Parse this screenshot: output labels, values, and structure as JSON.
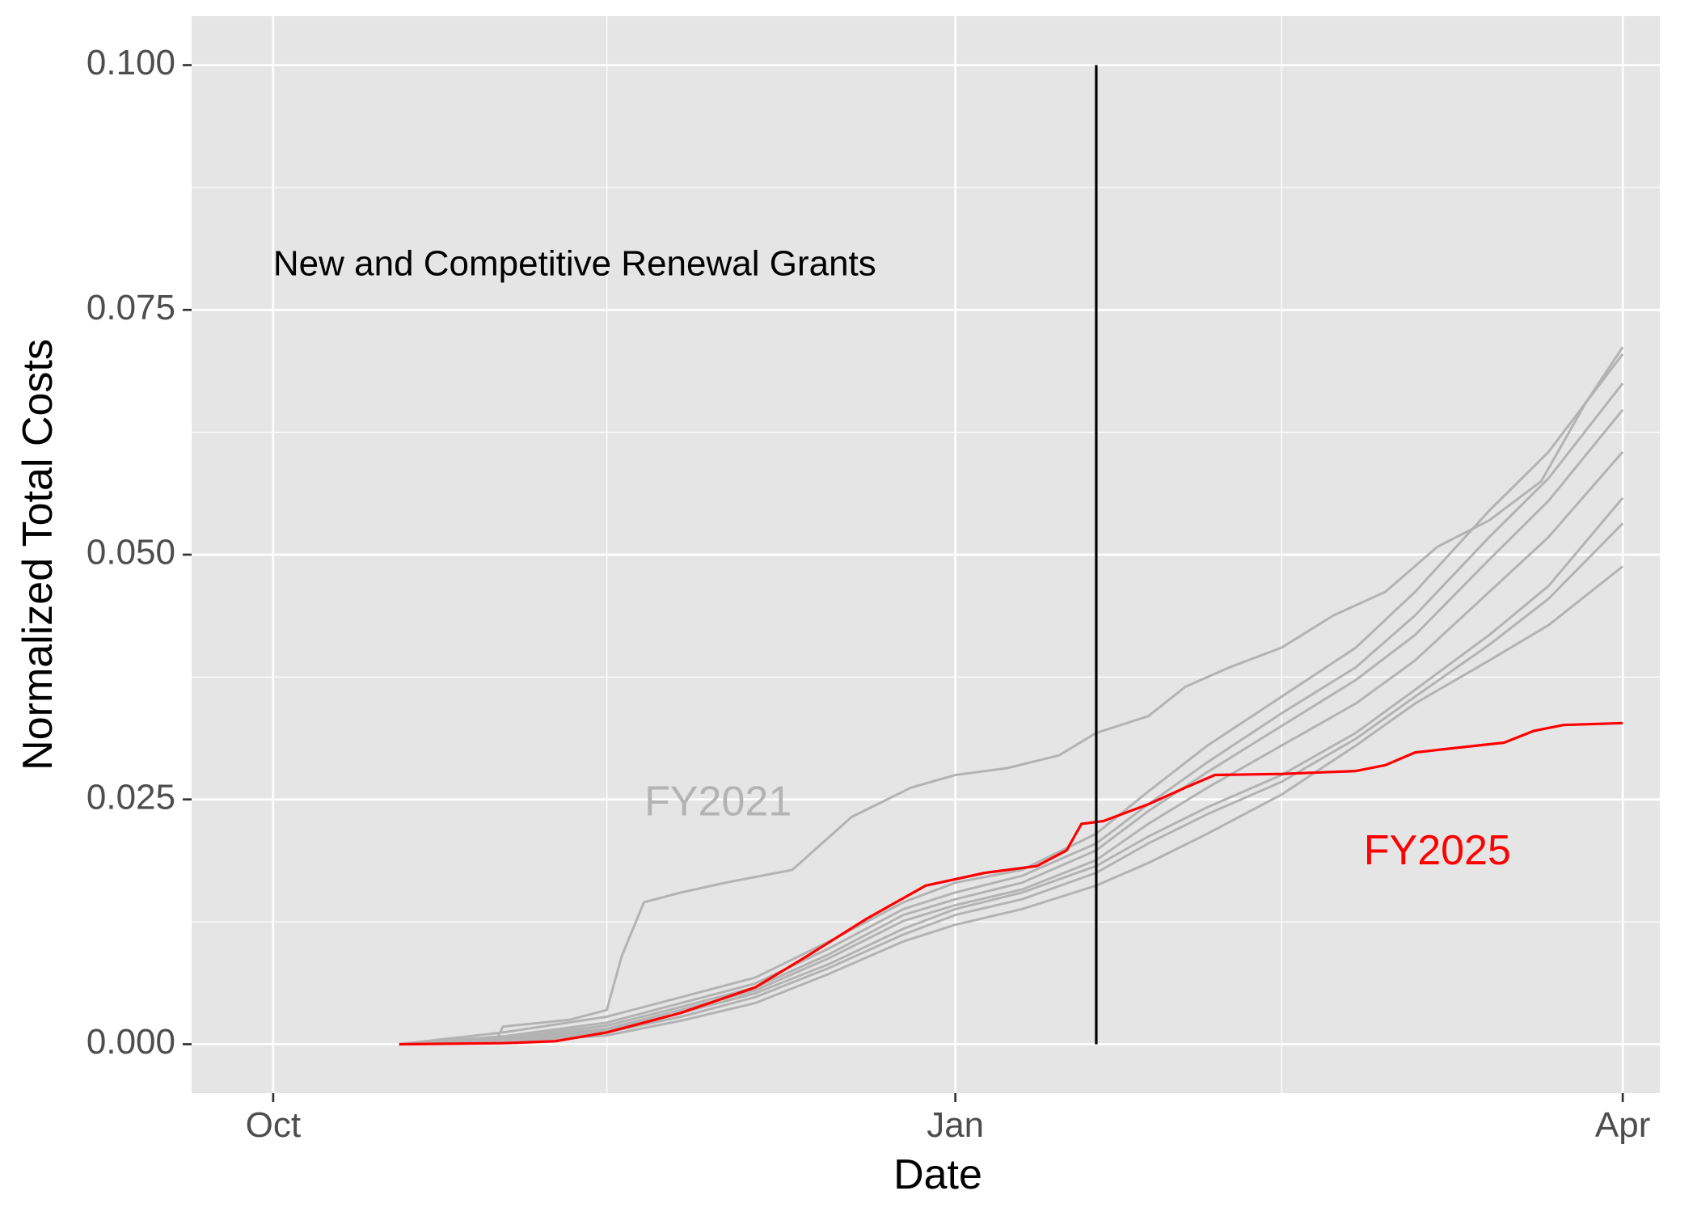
{
  "chart_data": {
    "type": "line",
    "title": "",
    "xlabel": "Date",
    "ylabel": "Normalized Total Costs",
    "xlim": [
      "2020-09-20",
      "2021-04-06"
    ],
    "ylim": [
      -0.005,
      0.105
    ],
    "grid": true,
    "legend": "none",
    "x_ticks": [
      {
        "date": "2020-10-01",
        "label": "Oct"
      },
      {
        "date": "2021-01-01",
        "label": "Jan"
      },
      {
        "date": "2021-04-01",
        "label": "Apr"
      }
    ],
    "x_minor_ticks": [
      "2020-11-15",
      "2021-02-14"
    ],
    "y_ticks": [
      {
        "value": 0.0,
        "label": "0.000"
      },
      {
        "value": 0.025,
        "label": "0.025"
      },
      {
        "value": 0.05,
        "label": "0.050"
      },
      {
        "value": 0.075,
        "label": "0.075"
      },
      {
        "value": 0.1,
        "label": "0.100"
      }
    ],
    "y_minor_ticks": [
      0.0125,
      0.0375,
      0.0625,
      0.0875
    ],
    "vline": {
      "date": "2021-01-20",
      "y_range": [
        0.0,
        0.1
      ]
    },
    "colors": {
      "panel": "#e5e5e5",
      "grid": "#ffffff",
      "history": "#b3b3b3",
      "highlight": "#ff0000",
      "vline": "#000000"
    },
    "annotations": [
      {
        "text": "New and Competitive Renewal Grants",
        "date": "2020-10-01",
        "y": 0.0795,
        "color": "#000000",
        "size": 44,
        "anchor": "start"
      },
      {
        "text": "FY2021",
        "date": "2020-11-30",
        "y": 0.0245,
        "color": "#b3b3b3",
        "size": 52,
        "anchor": "middle"
      },
      {
        "text": "FY2025",
        "date": "2021-03-07",
        "y": 0.0195,
        "color": "#ff0000",
        "size": 52,
        "anchor": "middle"
      }
    ],
    "series": [
      {
        "points": [
          [
            "2020-10-18",
            0
          ],
          [
            "2020-10-31",
            0.0003
          ],
          [
            "2020-11-01",
            0.0018
          ],
          [
            "2020-11-10",
            0.0025
          ],
          [
            "2020-11-15",
            0.0035
          ],
          [
            "2020-11-17",
            0.009
          ],
          [
            "2020-11-20",
            0.0145
          ],
          [
            "2020-11-25",
            0.0155
          ],
          [
            "2020-12-01",
            0.0165
          ],
          [
            "2020-12-10",
            0.0178
          ],
          [
            "2020-12-18",
            0.0232
          ],
          [
            "2020-12-26",
            0.0262
          ],
          [
            "2021-01-01",
            0.0275
          ],
          [
            "2021-01-08",
            0.0282
          ],
          [
            "2021-01-15",
            0.0295
          ],
          [
            "2021-01-20",
            0.0318
          ],
          [
            "2021-01-27",
            0.0335
          ],
          [
            "2021-02-01",
            0.0365
          ],
          [
            "2021-02-07",
            0.0385
          ],
          [
            "2021-02-14",
            0.0405
          ],
          [
            "2021-02-21",
            0.0438
          ],
          [
            "2021-02-28",
            0.0462
          ],
          [
            "2021-03-07",
            0.0508
          ],
          [
            "2021-03-14",
            0.0535
          ],
          [
            "2021-03-21",
            0.0575
          ],
          [
            "2021-03-27",
            0.0655
          ],
          [
            "2021-04-01",
            0.0712
          ]
        ]
      },
      {
        "points": [
          [
            "2020-10-18",
            0
          ],
          [
            "2020-11-01",
            0.0012
          ],
          [
            "2020-11-15",
            0.0028
          ],
          [
            "2020-11-25",
            0.0048
          ],
          [
            "2020-12-05",
            0.0068
          ],
          [
            "2020-12-15",
            0.0105
          ],
          [
            "2020-12-25",
            0.0145
          ],
          [
            "2021-01-01",
            0.0165
          ],
          [
            "2021-01-10",
            0.0178
          ],
          [
            "2021-01-20",
            0.0215
          ],
          [
            "2021-01-27",
            0.0258
          ],
          [
            "2021-02-04",
            0.0305
          ],
          [
            "2021-02-14",
            0.0355
          ],
          [
            "2021-02-24",
            0.0405
          ],
          [
            "2021-03-04",
            0.0462
          ],
          [
            "2021-03-14",
            0.0545
          ],
          [
            "2021-03-22",
            0.0605
          ],
          [
            "2021-04-01",
            0.0705
          ]
        ]
      },
      {
        "points": [
          [
            "2020-10-18",
            0
          ],
          [
            "2020-11-01",
            0.0008
          ],
          [
            "2020-11-15",
            0.0022
          ],
          [
            "2020-11-25",
            0.0042
          ],
          [
            "2020-12-05",
            0.0062
          ],
          [
            "2020-12-15",
            0.0098
          ],
          [
            "2020-12-25",
            0.0138
          ],
          [
            "2021-01-01",
            0.0155
          ],
          [
            "2021-01-10",
            0.0172
          ],
          [
            "2021-01-20",
            0.0205
          ],
          [
            "2021-01-27",
            0.0245
          ],
          [
            "2021-02-04",
            0.0288
          ],
          [
            "2021-02-14",
            0.0338
          ],
          [
            "2021-02-24",
            0.0385
          ],
          [
            "2021-03-04",
            0.0438
          ],
          [
            "2021-03-14",
            0.0518
          ],
          [
            "2021-03-22",
            0.0578
          ],
          [
            "2021-04-01",
            0.0675
          ]
        ]
      },
      {
        "points": [
          [
            "2020-10-18",
            0
          ],
          [
            "2020-11-01",
            0.0006
          ],
          [
            "2020-11-15",
            0.0019
          ],
          [
            "2020-11-25",
            0.0038
          ],
          [
            "2020-12-05",
            0.0058
          ],
          [
            "2020-12-15",
            0.0092
          ],
          [
            "2020-12-25",
            0.0132
          ],
          [
            "2021-01-01",
            0.0148
          ],
          [
            "2021-01-10",
            0.0165
          ],
          [
            "2021-01-20",
            0.0198
          ],
          [
            "2021-01-27",
            0.0238
          ],
          [
            "2021-02-04",
            0.0278
          ],
          [
            "2021-02-14",
            0.0325
          ],
          [
            "2021-02-24",
            0.0372
          ],
          [
            "2021-03-04",
            0.0418
          ],
          [
            "2021-03-14",
            0.0495
          ],
          [
            "2021-03-22",
            0.0555
          ],
          [
            "2021-04-01",
            0.0648
          ]
        ]
      },
      {
        "points": [
          [
            "2020-10-18",
            0
          ],
          [
            "2020-11-01",
            0.0005
          ],
          [
            "2020-11-15",
            0.0016
          ],
          [
            "2020-11-25",
            0.0035
          ],
          [
            "2020-12-05",
            0.0055
          ],
          [
            "2020-12-15",
            0.0088
          ],
          [
            "2020-12-25",
            0.0126
          ],
          [
            "2021-01-01",
            0.0142
          ],
          [
            "2021-01-10",
            0.0158
          ],
          [
            "2021-01-20",
            0.0188
          ],
          [
            "2021-01-27",
            0.0225
          ],
          [
            "2021-02-04",
            0.0262
          ],
          [
            "2021-02-14",
            0.0305
          ],
          [
            "2021-02-24",
            0.0348
          ],
          [
            "2021-03-04",
            0.0392
          ],
          [
            "2021-03-14",
            0.0462
          ],
          [
            "2021-03-22",
            0.0518
          ],
          [
            "2021-04-01",
            0.0605
          ]
        ]
      },
      {
        "points": [
          [
            "2020-10-18",
            0
          ],
          [
            "2020-11-01",
            0.0004
          ],
          [
            "2020-11-15",
            0.0014
          ],
          [
            "2020-11-25",
            0.0032
          ],
          [
            "2020-12-05",
            0.0052
          ],
          [
            "2020-12-15",
            0.0082
          ],
          [
            "2020-12-25",
            0.0118
          ],
          [
            "2021-01-01",
            0.0138
          ],
          [
            "2021-01-10",
            0.0155
          ],
          [
            "2021-01-20",
            0.0182
          ],
          [
            "2021-01-27",
            0.0212
          ],
          [
            "2021-02-04",
            0.0242
          ],
          [
            "2021-02-14",
            0.0275
          ],
          [
            "2021-02-24",
            0.0318
          ],
          [
            "2021-03-04",
            0.0362
          ],
          [
            "2021-03-14",
            0.0418
          ],
          [
            "2021-03-22",
            0.0468
          ],
          [
            "2021-04-01",
            0.0558
          ]
        ]
      },
      {
        "points": [
          [
            "2020-10-18",
            0
          ],
          [
            "2020-11-01",
            0.0003
          ],
          [
            "2020-11-15",
            0.0012
          ],
          [
            "2020-11-25",
            0.0028
          ],
          [
            "2020-12-05",
            0.0048
          ],
          [
            "2020-12-15",
            0.0078
          ],
          [
            "2020-12-25",
            0.0112
          ],
          [
            "2021-01-01",
            0.0132
          ],
          [
            "2021-01-10",
            0.0148
          ],
          [
            "2021-01-20",
            0.0175
          ],
          [
            "2021-01-27",
            0.0205
          ],
          [
            "2021-02-04",
            0.0235
          ],
          [
            "2021-02-14",
            0.0268
          ],
          [
            "2021-02-24",
            0.0312
          ],
          [
            "2021-03-04",
            0.0355
          ],
          [
            "2021-03-14",
            0.0408
          ],
          [
            "2021-03-22",
            0.0455
          ],
          [
            "2021-04-01",
            0.0532
          ]
        ]
      },
      {
        "points": [
          [
            "2020-10-18",
            0
          ],
          [
            "2020-11-01",
            0.0002
          ],
          [
            "2020-11-15",
            0.0009
          ],
          [
            "2020-11-25",
            0.0024
          ],
          [
            "2020-12-05",
            0.0042
          ],
          [
            "2020-12-15",
            0.0072
          ],
          [
            "2020-12-25",
            0.0105
          ],
          [
            "2021-01-01",
            0.0122
          ],
          [
            "2021-01-10",
            0.0138
          ],
          [
            "2021-01-20",
            0.0162
          ],
          [
            "2021-01-27",
            0.0185
          ],
          [
            "2021-02-04",
            0.0215
          ],
          [
            "2021-02-14",
            0.0255
          ],
          [
            "2021-02-24",
            0.0305
          ],
          [
            "2021-03-04",
            0.0348
          ],
          [
            "2021-03-14",
            0.0392
          ],
          [
            "2021-03-22",
            0.0428
          ],
          [
            "2021-04-01",
            0.0488
          ]
        ]
      },
      {
        "points": [
          [
            "2020-10-18",
            0
          ],
          [
            "2020-11-01",
            0.0001
          ],
          [
            "2020-11-08",
            0.0003
          ],
          [
            "2020-11-15",
            0.0012
          ],
          [
            "2020-11-25",
            0.0032
          ],
          [
            "2020-12-05",
            0.0058
          ],
          [
            "2020-12-12",
            0.009
          ],
          [
            "2020-12-20",
            0.0128
          ],
          [
            "2020-12-28",
            0.0162
          ],
          [
            "2021-01-05",
            0.0175
          ],
          [
            "2021-01-12",
            0.0182
          ],
          [
            "2021-01-16",
            0.0198
          ],
          [
            "2021-01-18",
            0.0225
          ],
          [
            "2021-01-21",
            0.0228
          ],
          [
            "2021-01-27",
            0.0245
          ],
          [
            "2021-02-01",
            0.0262
          ],
          [
            "2021-02-05",
            0.0275
          ],
          [
            "2021-02-14",
            0.0276
          ],
          [
            "2021-02-24",
            0.0279
          ],
          [
            "2021-02-28",
            0.0285
          ],
          [
            "2021-03-04",
            0.0298
          ],
          [
            "2021-03-10",
            0.0303
          ],
          [
            "2021-03-16",
            0.0308
          ],
          [
            "2021-03-20",
            0.032
          ],
          [
            "2021-03-24",
            0.0326
          ],
          [
            "2021-04-01",
            0.0328
          ]
        ],
        "highlight": true
      }
    ]
  }
}
